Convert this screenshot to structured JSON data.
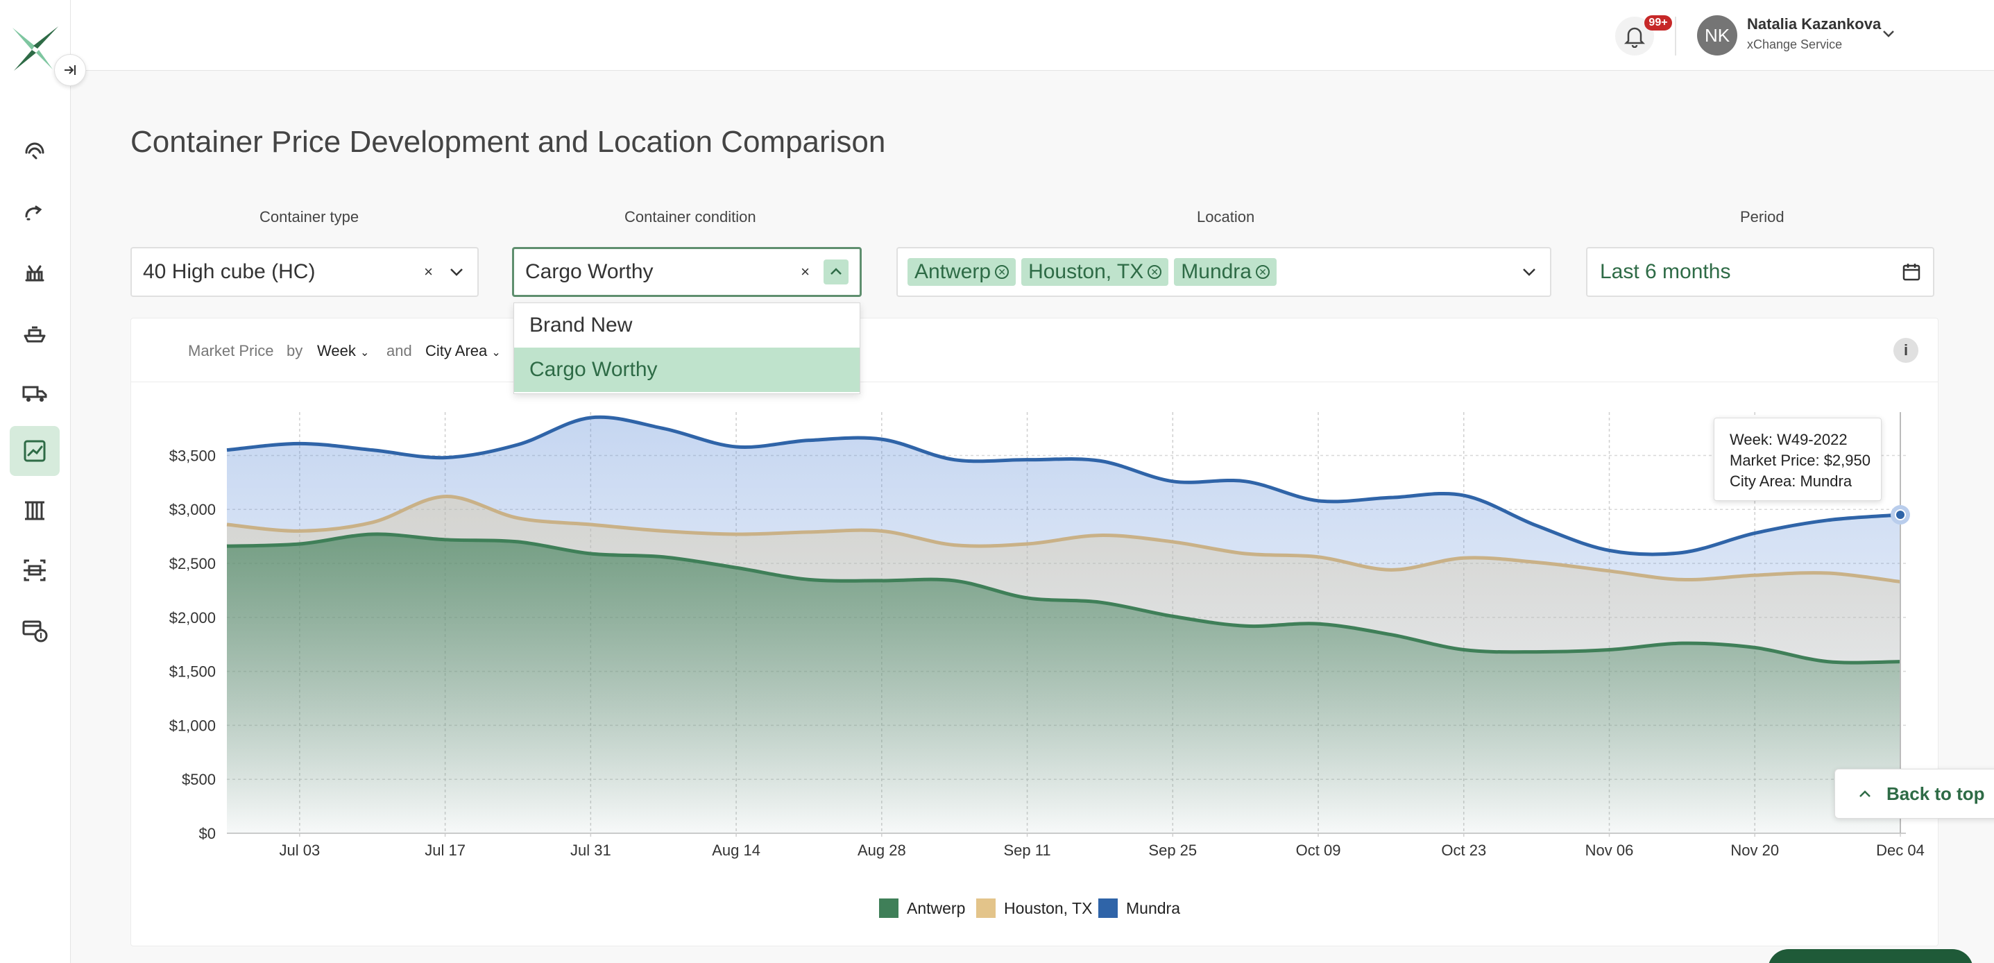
{
  "header": {
    "notification_badge": "99+",
    "user": {
      "initials": "NK",
      "name": "Natalia Kazankova",
      "role": "xChange Service"
    }
  },
  "page": {
    "title": "Container Price Development and Location Comparison"
  },
  "filters": {
    "container_type": {
      "label": "Container type",
      "value": "40 High cube (HC)",
      "clear": "×"
    },
    "container_condition": {
      "label": "Container condition",
      "value": "Cargo Worthy",
      "clear": "×",
      "options": [
        "Brand New",
        "Cargo Worthy"
      ],
      "selected": "Cargo Worthy"
    },
    "location": {
      "label": "Location",
      "chips": [
        "Antwerp",
        "Houston, TX",
        "Mundra"
      ]
    },
    "period": {
      "label": "Period",
      "value": "Last 6 months"
    }
  },
  "chart_controls": {
    "metric": "Market Price",
    "by": "by",
    "group": "Week",
    "and": "and",
    "split": "City Area",
    "info": "i"
  },
  "tooltip": {
    "week": "Week: W49-2022",
    "price": "Market Price: $2,950",
    "area": "City Area: Mundra"
  },
  "back_to_top": "Back to top",
  "colors": {
    "antwerp": "#3f7f58",
    "houston": "#e3c48a",
    "mundra": "#2f64a8",
    "accent": "#2e6b46"
  },
  "chart_data": {
    "type": "area",
    "xlabel": "",
    "ylabel": "",
    "ylim": [
      0,
      3850
    ],
    "y_ticks": [
      0,
      500,
      1000,
      1500,
      2000,
      2500,
      3000,
      3500
    ],
    "y_tick_labels": [
      "$0",
      "$500",
      "$1,000",
      "$1,500",
      "$2,000",
      "$2,500",
      "$3,000",
      "$3,500"
    ],
    "x_tick_labels": [
      "Jul 03",
      "Jul 17",
      "Jul 31",
      "Aug 14",
      "Aug 28",
      "Sep 11",
      "Sep 25",
      "Oct 09",
      "Oct 23",
      "Nov 06",
      "Nov 20",
      "Dec 04"
    ],
    "x": [
      "Jun 26",
      "Jul 03",
      "Jul 10",
      "Jul 17",
      "Jul 24",
      "Jul 31",
      "Aug 07",
      "Aug 14",
      "Aug 21",
      "Aug 28",
      "Sep 04",
      "Sep 11",
      "Sep 18",
      "Sep 25",
      "Oct 02",
      "Oct 09",
      "Oct 16",
      "Oct 23",
      "Oct 30",
      "Nov 06",
      "Nov 13",
      "Nov 20",
      "Nov 27",
      "Dec 04"
    ],
    "series": [
      {
        "name": "Mundra",
        "values": [
          3550,
          3610,
          3550,
          3480,
          3600,
          3850,
          3750,
          3580,
          3640,
          3650,
          3460,
          3460,
          3450,
          3260,
          3260,
          3080,
          3110,
          3130,
          2850,
          2620,
          2600,
          2780,
          2900,
          2950
        ]
      },
      {
        "name": "Houston, TX",
        "values": [
          2860,
          2800,
          2880,
          3120,
          2920,
          2860,
          2800,
          2770,
          2790,
          2800,
          2670,
          2680,
          2760,
          2700,
          2590,
          2560,
          2440,
          2550,
          2510,
          2430,
          2350,
          2390,
          2410,
          2330
        ]
      },
      {
        "name": "Antwerp",
        "values": [
          2660,
          2680,
          2770,
          2720,
          2700,
          2590,
          2560,
          2460,
          2350,
          2340,
          2340,
          2180,
          2140,
          2010,
          1920,
          1940,
          1840,
          1700,
          1680,
          1700,
          1760,
          1720,
          1590,
          1590
        ]
      }
    ],
    "legend": [
      "Antwerp",
      "Houston, TX",
      "Mundra"
    ],
    "legend_position": "bottom",
    "grid": true
  }
}
